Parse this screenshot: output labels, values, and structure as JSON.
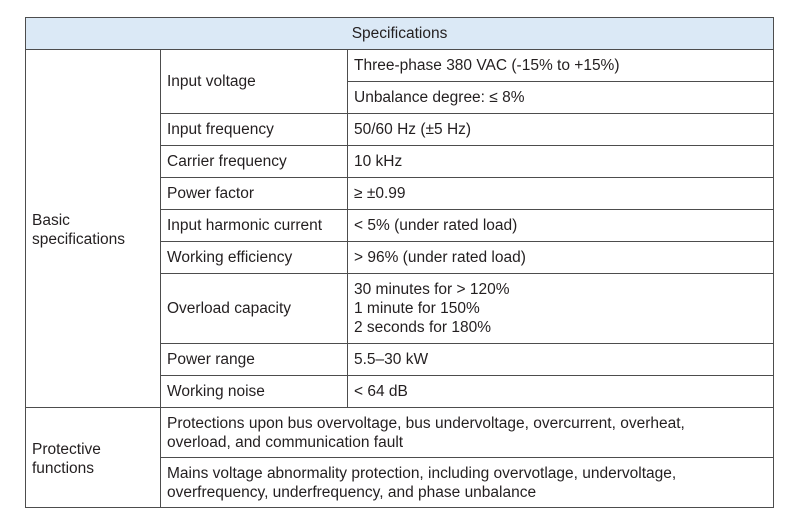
{
  "table": {
    "header": "Specifications",
    "sections": [
      {
        "label": [
          "Basic",
          "specifications"
        ],
        "rows": [
          {
            "item": "Input voltage",
            "values": [
              [
                "Three-phase 380 VAC (-15% to +15%)"
              ],
              [
                "Unbalance degree: ≤ 8%"
              ]
            ]
          },
          {
            "item": "Input frequency",
            "values": [
              [
                "50/60 Hz (±5 Hz)"
              ]
            ]
          },
          {
            "item": "Carrier frequency",
            "values": [
              [
                "10 kHz"
              ]
            ]
          },
          {
            "item": "Power factor",
            "values": [
              [
                "≥ ±0.99"
              ]
            ]
          },
          {
            "item": "Input harmonic current",
            "values": [
              [
                "< 5% (under rated load)"
              ]
            ]
          },
          {
            "item": "Working efficiency",
            "values": [
              [
                "> 96% (under rated load)"
              ]
            ]
          },
          {
            "item": "Overload capacity",
            "values": [
              [
                "30 minutes for > 120%",
                "1 minute for 150%",
                "2 seconds for 180%"
              ]
            ]
          },
          {
            "item": "Power range",
            "values": [
              [
                "5.5–30 kW"
              ]
            ]
          },
          {
            "item": "Working noise",
            "values": [
              [
                "< 64 dB"
              ]
            ]
          }
        ]
      },
      {
        "label": [
          "Protective",
          "functions"
        ],
        "rows": [
          {
            "values": [
              [
                "Protections upon bus overvoltage, bus undervoltage, overcurrent, overheat,",
                "overload, and communication fault"
              ]
            ]
          },
          {
            "values": [
              [
                "Mains voltage abnormality protection, including overvotlage, undervoltage,",
                "overfrequency, underfrequency, and phase unbalance"
              ]
            ]
          }
        ]
      }
    ]
  }
}
